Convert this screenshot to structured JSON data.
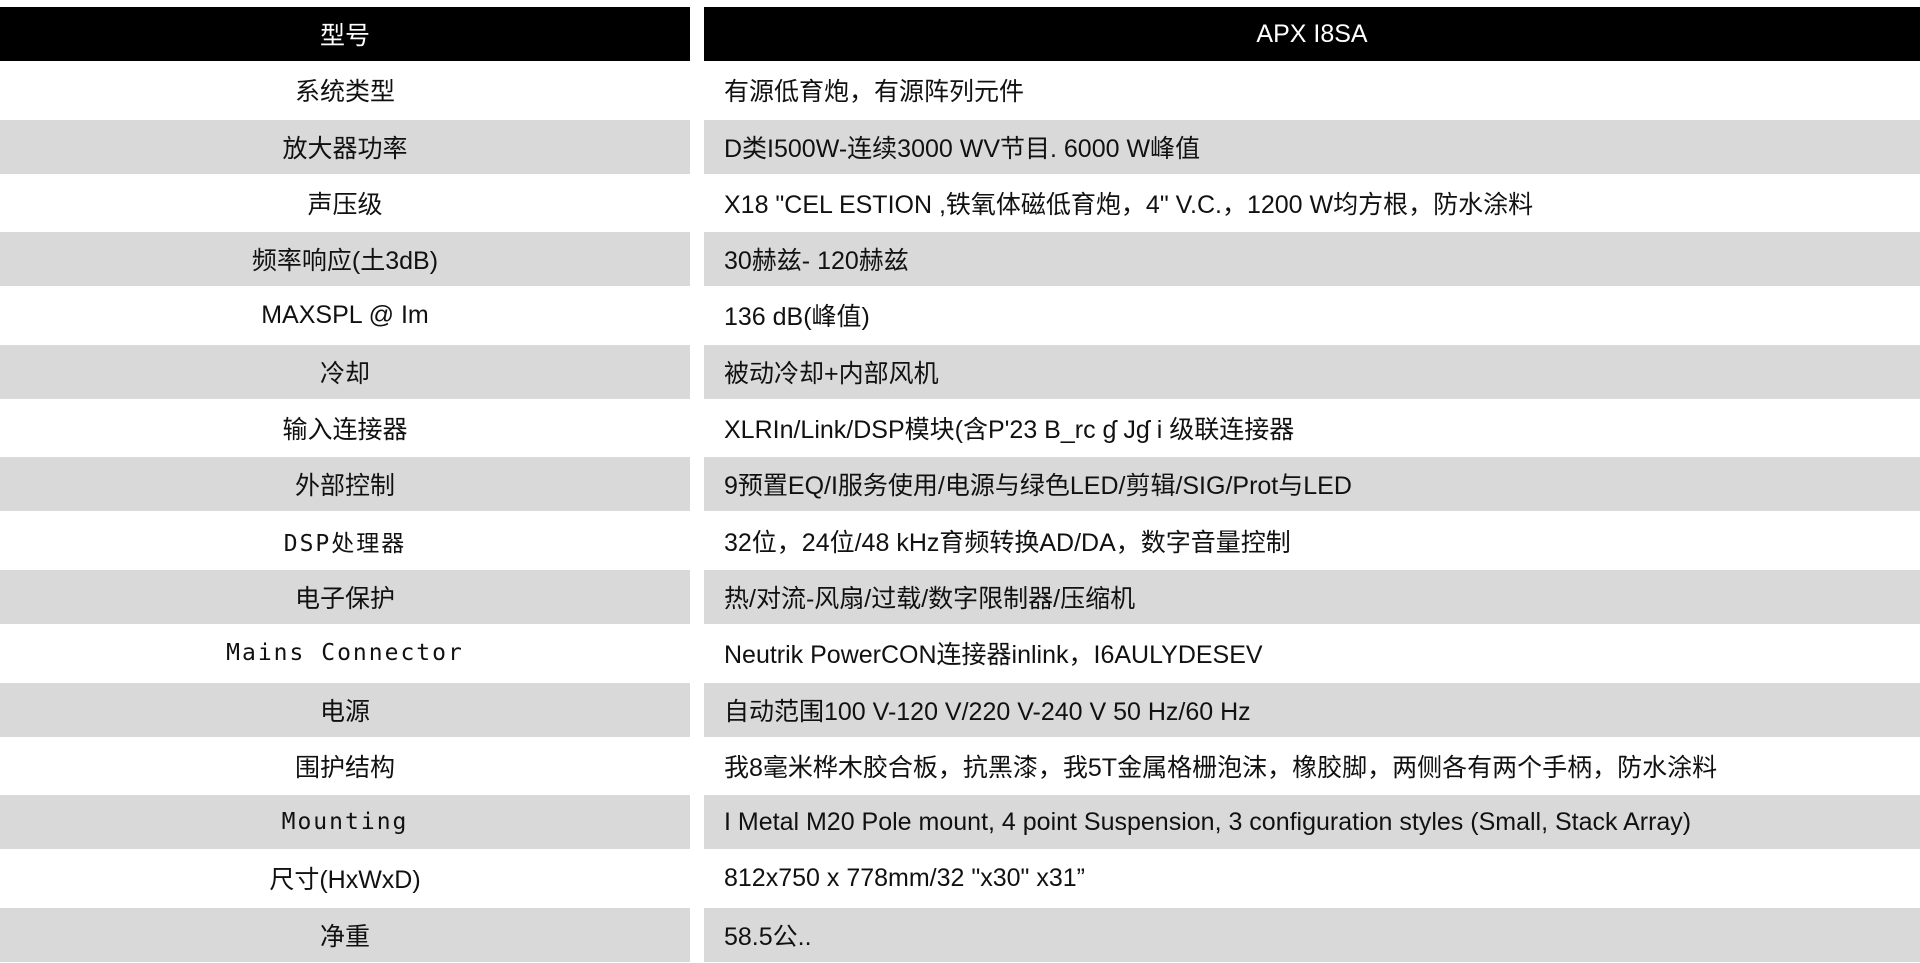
{
  "header": {
    "label": "型号",
    "model": "APX I8SA"
  },
  "rows": [
    {
      "label": "系统类型",
      "value": "有源低育炮，有源阵列元件"
    },
    {
      "label": "放大器功率",
      "value": "D类I500W-连续3000 WV节目. 6000 W峰值"
    },
    {
      "label": "声压级",
      "value": "X18 \"CEL ESTION ,铁氧体磁低育炮，4\" V.C.，1200 W均方根，防水涂料"
    },
    {
      "label": "频率响应(土3dB)",
      "value": "30赫兹- 120赫兹"
    },
    {
      "label": "MAXSPL @ Im",
      "value": "136 dB(峰值)"
    },
    {
      "label": "冷却",
      "value": "被动冷却+内部风机"
    },
    {
      "label": "输入连接器",
      "value": "XLRIn/Link/DSP模块(含P'23 B_rc ɠ Jɠ i 级联连接器"
    },
    {
      "label": "外部控制",
      "value": "9预置EQ/I服务使用/电源与绿色LED/剪辑/SIG/Prot与LED"
    },
    {
      "label": "DSP处理器",
      "value": "32位，24位/48 kHz育频转换AD/DA，数字音量控制"
    },
    {
      "label": "电子保护",
      "value": "热/对流-风扇/过载/数字限制器/压缩机"
    },
    {
      "label": "Mains Connector",
      "value": "Neutrik PowerCON连接器inlink，I6AULYDESEV"
    },
    {
      "label": "电源",
      "value": "自动范围100 V-120 V/220 V-240 V 50 Hz/60 Hz"
    },
    {
      "label": "围护结构",
      "value": "我8毫米桦木胶合板，抗黑漆，我5T金属格栅泡沫，橡胶脚，两侧各有两个手柄，防水涂料"
    },
    {
      "label": "Mounting",
      "value": "I Metal M20 Pole mount, 4 point Suspension, 3 configuration styles (Small, Stack Array)"
    },
    {
      "label": "尺寸(HxWxD)",
      "value": "812x750 x 778mm/32 \"x30\" x31”"
    },
    {
      "label": "净重",
      "value": "58.5公.."
    }
  ]
}
